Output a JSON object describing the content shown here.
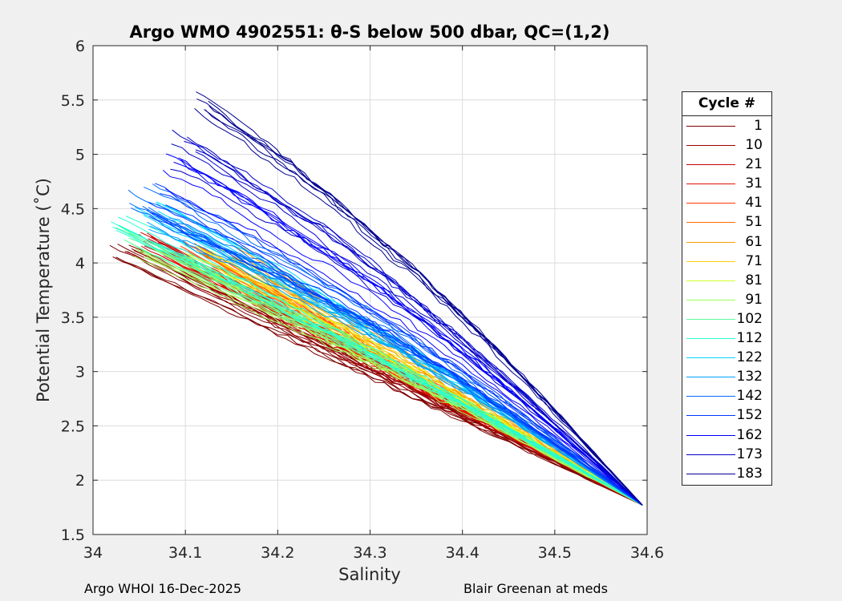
{
  "chart_data": {
    "type": "line",
    "title": "Argo WMO 4902551: θ-S below 500 dbar,  QC=(1,2)",
    "xlabel": "Salinity",
    "ylabel": "Potential Temperature (˚C)",
    "xlim": [
      34.0,
      34.6
    ],
    "ylim": [
      1.5,
      6.0
    ],
    "xticks": [
      "34",
      "34.1",
      "34.2",
      "34.3",
      "34.4",
      "34.5",
      "34.6"
    ],
    "yticks": [
      "1.5",
      "2",
      "2.5",
      "3",
      "3.5",
      "4",
      "4.5",
      "5",
      "5.5",
      "6"
    ],
    "grid": true,
    "colormap": "jet",
    "legend": {
      "title": "Cycle #",
      "placement": "right-outside",
      "entries": [
        {
          "label": "1",
          "color": "#800000"
        },
        {
          "label": "10",
          "color": "#a00000"
        },
        {
          "label": "21",
          "color": "#c80000"
        },
        {
          "label": "31",
          "color": "#e51200"
        },
        {
          "label": "41",
          "color": "#ff3800"
        },
        {
          "label": "51",
          "color": "#ff6a00"
        },
        {
          "label": "61",
          "color": "#ff9c00"
        },
        {
          "label": "71",
          "color": "#ffd000"
        },
        {
          "label": "81",
          "color": "#d2ff25"
        },
        {
          "label": "91",
          "color": "#9cff5b"
        },
        {
          "label": "102",
          "color": "#5aff9d"
        },
        {
          "label": "112",
          "color": "#25ffd2"
        },
        {
          "label": "122",
          "color": "#00d4ff"
        },
        {
          "label": "132",
          "color": "#00a0ff"
        },
        {
          "label": "142",
          "color": "#006cff"
        },
        {
          "label": "152",
          "color": "#0036ff"
        },
        {
          "label": "162",
          "color": "#0000ff"
        },
        {
          "label": "173",
          "color": "#0000cb"
        },
        {
          "label": "183",
          "color": "#000090"
        }
      ]
    },
    "profiles_summary": {
      "end_point": {
        "salinity": 34.595,
        "theta": 1.77
      },
      "family_start_points_salinity_theta": [
        [
          34.03,
          4.12
        ],
        [
          34.05,
          4.15
        ],
        [
          34.06,
          4.22
        ],
        [
          34.08,
          4.05
        ],
        [
          34.1,
          4.2
        ],
        [
          34.12,
          4.05
        ],
        [
          34.15,
          4.1
        ],
        [
          34.12,
          4.1
        ],
        [
          34.1,
          4.08
        ],
        [
          34.05,
          4.12
        ],
        [
          34.04,
          4.25
        ],
        [
          34.03,
          4.37
        ],
        [
          34.06,
          4.5
        ],
        [
          34.07,
          4.4
        ],
        [
          34.05,
          4.6
        ],
        [
          34.07,
          4.55
        ],
        [
          34.09,
          4.85
        ],
        [
          34.1,
          5.05
        ],
        [
          34.11,
          5.5
        ]
      ]
    }
  },
  "footer": {
    "left": "Argo WHOI 16-Dec-2025",
    "right": "Blair Greenan at meds"
  }
}
